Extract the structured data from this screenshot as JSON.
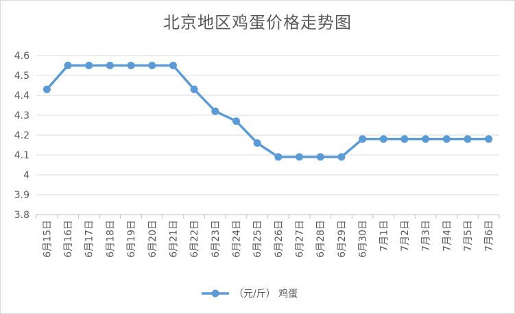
{
  "chart_data": {
    "type": "line",
    "title": "北京地区鸡蛋价格走势图",
    "xlabel": "",
    "ylabel": "",
    "categories": [
      "6月15日",
      "6月16日",
      "6月17日",
      "6月18日",
      "6月19日",
      "6月20日",
      "6月21日",
      "6月22日",
      "6月23日",
      "6月24日",
      "6月25日",
      "6月26日",
      "6月27日",
      "6月28日",
      "6月29日",
      "6月30日",
      "7月1日",
      "7月2日",
      "7月3日",
      "7月4日",
      "7月5日",
      "7月6日"
    ],
    "series": [
      {
        "name": "（元/斤） 鸡蛋",
        "values": [
          4.43,
          4.55,
          4.55,
          4.55,
          4.55,
          4.55,
          4.55,
          4.43,
          4.32,
          4.27,
          4.16,
          4.09,
          4.09,
          4.09,
          4.09,
          4.18,
          4.18,
          4.18,
          4.18,
          4.18,
          4.18,
          4.18
        ]
      }
    ],
    "ylim": [
      3.8,
      4.6
    ],
    "yticks": [
      3.8,
      3.9,
      4,
      4.1,
      4.2,
      4.3,
      4.4,
      4.5,
      4.6
    ],
    "grid": true,
    "legend_position": "bottom",
    "colors": {
      "line": "#5b9bd5",
      "grid": "#d9d9d9",
      "axis": "#bfbfbf",
      "text": "#595959"
    }
  }
}
